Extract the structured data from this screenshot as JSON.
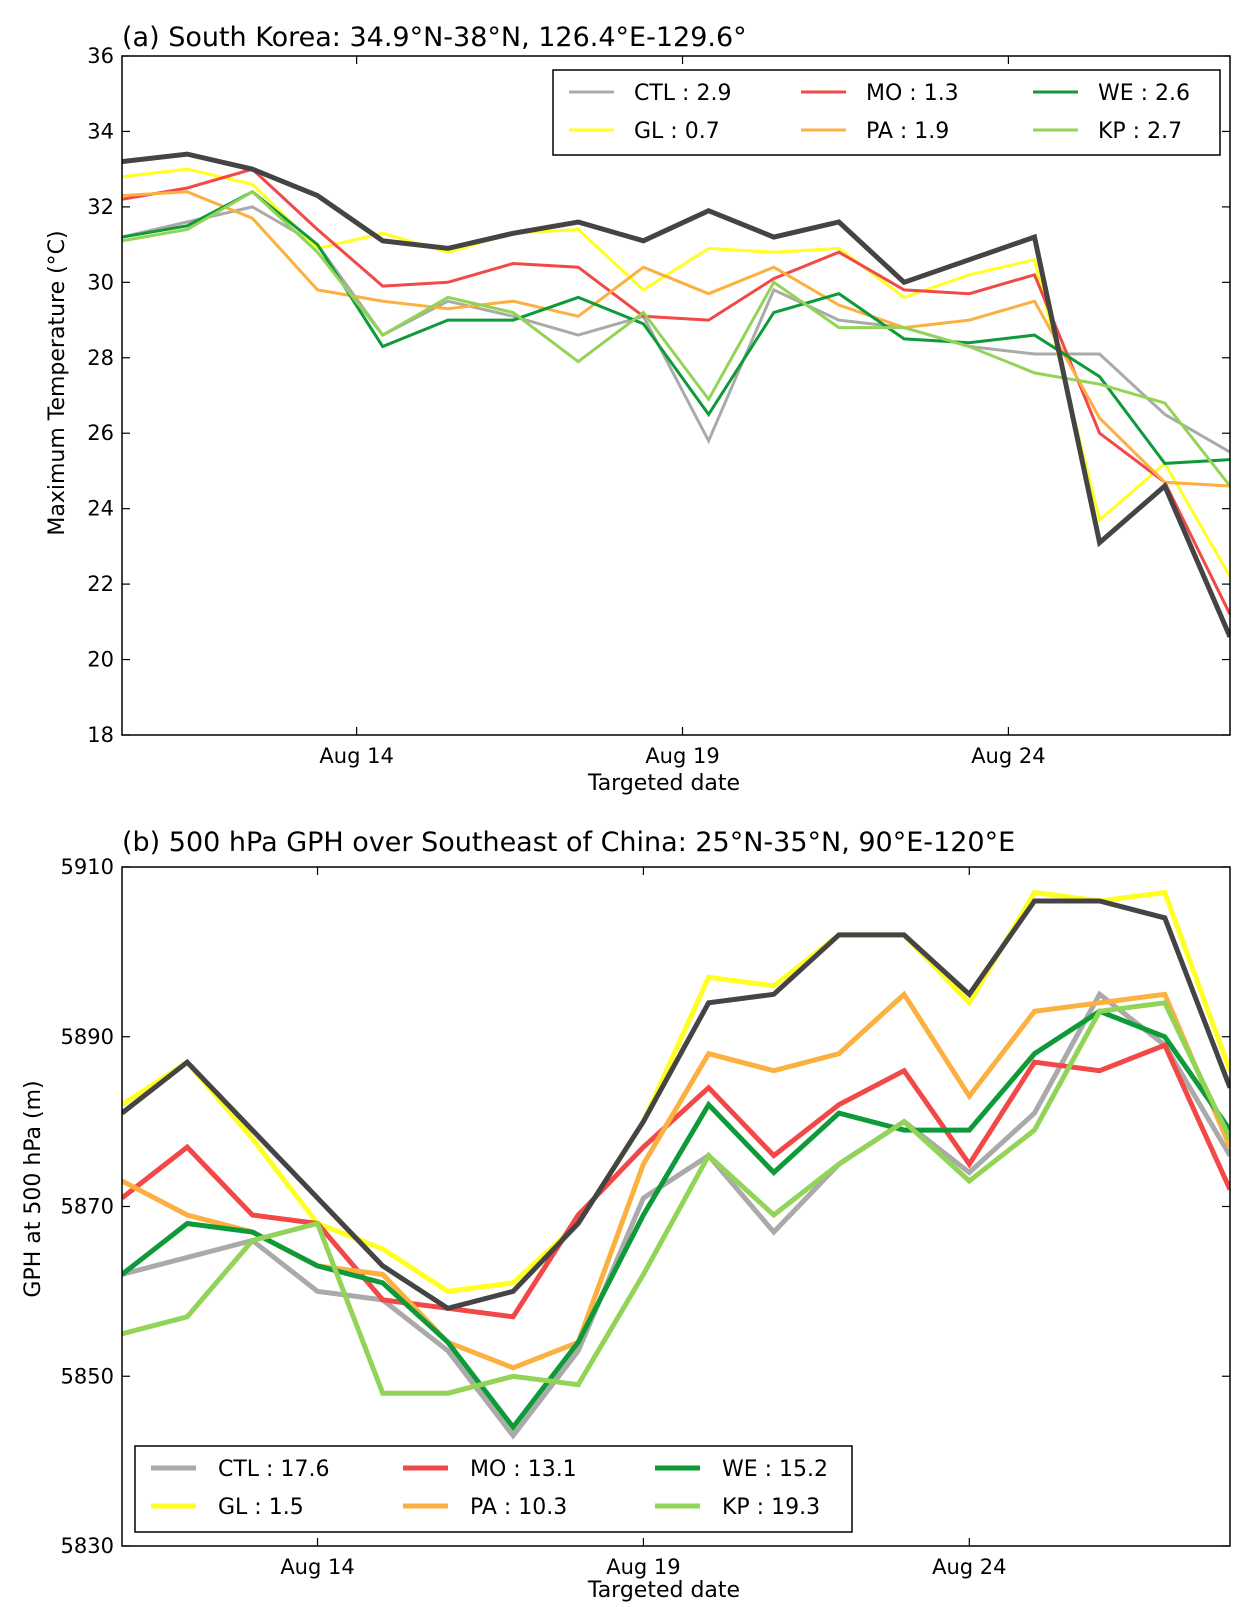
{
  "colors": {
    "OBS": "#444444",
    "CTL": "#aaaaaa",
    "GL": "#ffff22",
    "MO": "#f24848",
    "PA": "#fbb040",
    "WE": "#0f9a3a",
    "KP": "#92d457"
  },
  "chart_data": [
    {
      "type": "line",
      "title": "(a) South Korea: 34.9°N-38°N, 126.4°E-129.6°",
      "xlabel": "Targeted date",
      "ylabel": "Maximum Temperature (°C)",
      "x_start": "Aug 11",
      "x": [
        "Aug 11",
        "Aug 12",
        "Aug 13",
        "Aug 14",
        "Aug 15",
        "Aug 16",
        "Aug 17",
        "Aug 18",
        "Aug 19",
        "Aug 20",
        "Aug 21",
        "Aug 22",
        "Aug 23",
        "Aug 24",
        "Aug 25",
        "Aug 26",
        "Aug 27",
        "Aug 28"
      ],
      "xticks": [
        {
          "label": "Aug 14",
          "value": 3.6
        },
        {
          "label": "Aug 19",
          "value": 8.6
        },
        {
          "label": "Aug 24",
          "value": 13.6
        }
      ],
      "xlim": [
        0.0,
        17.0
      ],
      "ylim": [
        18,
        36
      ],
      "yticks": [
        18,
        20,
        22,
        24,
        26,
        28,
        30,
        32,
        34,
        36
      ],
      "grid": false,
      "legend_position": "top-right",
      "legend": [
        [
          "CTL",
          "MO",
          "WE"
        ],
        [
          "GL",
          "PA",
          "KP"
        ]
      ],
      "series": [
        {
          "key": "OBS",
          "values": [
            33.2,
            33.4,
            33.0,
            32.3,
            31.1,
            30.9,
            31.3,
            31.6,
            31.1,
            31.9,
            31.2,
            31.6,
            30.0,
            30.6,
            31.2,
            23.1,
            24.6,
            20.6
          ]
        },
        {
          "key": "CTL",
          "name": "CTL : 2.9",
          "values": [
            31.2,
            31.6,
            32.0,
            31.0,
            28.6,
            29.5,
            29.1,
            28.6,
            29.1,
            25.8,
            29.8,
            29.0,
            28.8,
            28.3,
            28.1,
            28.1,
            26.5,
            25.5
          ]
        },
        {
          "key": "GL",
          "name": "GL : 0.7",
          "values": [
            32.8,
            33.0,
            32.6,
            30.9,
            31.3,
            30.8,
            31.3,
            31.4,
            29.8,
            30.9,
            30.8,
            30.9,
            29.6,
            30.2,
            30.6,
            23.7,
            25.2,
            22.2
          ]
        },
        {
          "key": "MO",
          "name": "MO : 1.3",
          "values": [
            32.2,
            32.5,
            33.0,
            31.4,
            29.9,
            30.0,
            30.5,
            30.4,
            29.1,
            29.0,
            30.1,
            30.8,
            29.8,
            29.7,
            30.2,
            26.0,
            24.7,
            21.2
          ]
        },
        {
          "key": "PA",
          "name": "PA : 1.9",
          "values": [
            32.3,
            32.4,
            31.7,
            29.8,
            29.5,
            29.3,
            29.5,
            29.1,
            30.4,
            29.7,
            30.4,
            29.4,
            28.8,
            29.0,
            29.5,
            26.4,
            24.7,
            24.6
          ]
        },
        {
          "key": "WE",
          "name": "WE : 2.6",
          "values": [
            31.2,
            31.5,
            32.4,
            31.0,
            28.3,
            29.0,
            29.0,
            29.6,
            28.9,
            26.5,
            29.2,
            29.7,
            28.5,
            28.4,
            28.6,
            27.5,
            25.2,
            25.3
          ]
        },
        {
          "key": "KP",
          "name": "KP : 2.7",
          "values": [
            31.1,
            31.4,
            32.4,
            30.8,
            28.6,
            29.6,
            29.2,
            27.9,
            29.2,
            26.9,
            30.0,
            28.8,
            28.8,
            28.3,
            27.6,
            27.3,
            26.8,
            24.6
          ]
        }
      ]
    },
    {
      "type": "line",
      "title": "(b) 500 hPa GPH over Southeast of China: 25°N-35°N, 90°E-120°E",
      "xlabel": "Targeted date",
      "ylabel": "GPH at 500 hPa  (m)",
      "x_start": "Aug 11",
      "x": [
        "Aug 11",
        "Aug 12",
        "Aug 13",
        "Aug 14",
        "Aug 15",
        "Aug 16",
        "Aug 17",
        "Aug 18",
        "Aug 19",
        "Aug 20",
        "Aug 21",
        "Aug 22",
        "Aug 23",
        "Aug 24",
        "Aug 25",
        "Aug 26",
        "Aug 27",
        "Aug 28"
      ],
      "xticks": [
        {
          "label": "Aug 14",
          "value": 3.0
        },
        {
          "label": "Aug 19",
          "value": 8.0
        },
        {
          "label": "Aug 24",
          "value": 13.0
        }
      ],
      "xlim": [
        0.0,
        17.0
      ],
      "ylim": [
        5830,
        5910
      ],
      "yticks": [
        5830,
        5850,
        5870,
        5890,
        5910
      ],
      "grid": false,
      "legend_position": "bottom-left",
      "legend": [
        [
          "CTL",
          "MO",
          "WE"
        ],
        [
          "GL",
          "PA",
          "KP"
        ]
      ],
      "series": [
        {
          "key": "OBS",
          "values": [
            5881,
            5887,
            5879,
            5871,
            5863,
            5858,
            5860,
            5868,
            5880,
            5894,
            5895,
            5902,
            5902,
            5895,
            5906,
            5906,
            5904,
            5884
          ]
        },
        {
          "key": "CTL",
          "name": "CTL : 17.6",
          "values": [
            5862,
            5864,
            5866,
            5860,
            5859,
            5853,
            5843,
            5853,
            5871,
            5876,
            5867,
            5875,
            5880,
            5874,
            5881,
            5895,
            5889,
            5876
          ]
        },
        {
          "key": "GL",
          "name": "GL : 1.5",
          "values": [
            5882,
            5887,
            5878,
            5868,
            5865,
            5860,
            5861,
            5868,
            5880,
            5897,
            5896,
            5902,
            5902,
            5894,
            5907,
            5906,
            5907,
            5886
          ]
        },
        {
          "key": "MO",
          "name": "MO : 13.1",
          "values": [
            5871,
            5877,
            5869,
            5868,
            5859,
            5858,
            5857,
            5869,
            5877,
            5884,
            5876,
            5882,
            5886,
            5875,
            5887,
            5886,
            5889,
            5872
          ]
        },
        {
          "key": "PA",
          "name": "PA : 10.3",
          "values": [
            5873,
            5869,
            5867,
            5863,
            5862,
            5854,
            5851,
            5854,
            5875,
            5888,
            5886,
            5888,
            5895,
            5883,
            5893,
            5894,
            5895,
            5877
          ]
        },
        {
          "key": "WE",
          "name": "WE : 15.2",
          "values": [
            5862,
            5868,
            5867,
            5863,
            5861,
            5854,
            5844,
            5854,
            5869,
            5882,
            5874,
            5881,
            5879,
            5879,
            5888,
            5893,
            5890,
            5879
          ]
        },
        {
          "key": "KP",
          "name": "KP : 19.3",
          "values": [
            5855,
            5857,
            5866,
            5868,
            5848,
            5848,
            5850,
            5849,
            5862,
            5876,
            5869,
            5875,
            5880,
            5873,
            5879,
            5893,
            5894,
            5878
          ]
        }
      ]
    }
  ]
}
